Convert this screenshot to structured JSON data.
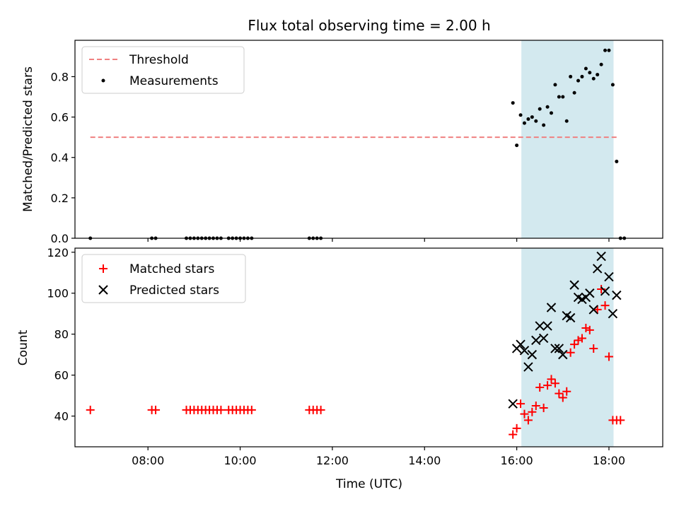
{
  "chart_data": {
    "title": "Flux total observing time = 2.00 h",
    "xlabel": "Time (UTC)",
    "xticks": [
      "08:00",
      "10:00",
      "12:00",
      "14:00",
      "16:00",
      "18:00"
    ],
    "xlim": [
      "06:25",
      "19:10"
    ],
    "highlight_span": {
      "start": "16:06",
      "end": "18:06",
      "color": "#d3e9ef"
    },
    "panels": [
      {
        "type": "scatter",
        "ylabel": "Matched/Predicted stars",
        "ylim": [
          0,
          0.98
        ],
        "yticks": [
          "0.0",
          "0.2",
          "0.4",
          "0.6",
          "0.8"
        ],
        "legend_position": "upper left",
        "threshold": {
          "name": "Threshold",
          "value": 0.5,
          "x_start": "06:45",
          "x_end": "18:10",
          "color": "#f08080"
        },
        "series": [
          {
            "name": "Measurements",
            "color": "#000000",
            "points": [
              [
                "06:45",
                0
              ],
              [
                "08:05",
                0
              ],
              [
                "08:10",
                0
              ],
              [
                "08:50",
                0
              ],
              [
                "08:55",
                0
              ],
              [
                "09:00",
                0
              ],
              [
                "09:05",
                0
              ],
              [
                "09:10",
                0
              ],
              [
                "09:15",
                0
              ],
              [
                "09:20",
                0
              ],
              [
                "09:25",
                0
              ],
              [
                "09:30",
                0
              ],
              [
                "09:35",
                0
              ],
              [
                "09:45",
                0
              ],
              [
                "09:50",
                0
              ],
              [
                "09:55",
                0
              ],
              [
                "10:00",
                0
              ],
              [
                "10:05",
                0
              ],
              [
                "10:10",
                0
              ],
              [
                "10:15",
                0
              ],
              [
                "11:30",
                0
              ],
              [
                "11:35",
                0
              ],
              [
                "11:40",
                0
              ],
              [
                "11:45",
                0
              ],
              [
                "15:55",
                0.67
              ],
              [
                "16:00",
                0.46
              ],
              [
                "16:05",
                0.61
              ],
              [
                "16:10",
                0.57
              ],
              [
                "16:15",
                0.59
              ],
              [
                "16:20",
                0.6
              ],
              [
                "16:25",
                0.58
              ],
              [
                "16:30",
                0.64
              ],
              [
                "16:35",
                0.56
              ],
              [
                "16:40",
                0.65
              ],
              [
                "16:45",
                0.62
              ],
              [
                "16:50",
                0.76
              ],
              [
                "16:55",
                0.7
              ],
              [
                "17:00",
                0.7
              ],
              [
                "17:05",
                0.58
              ],
              [
                "17:10",
                0.8
              ],
              [
                "17:15",
                0.72
              ],
              [
                "17:20",
                0.78
              ],
              [
                "17:25",
                0.8
              ],
              [
                "17:30",
                0.84
              ],
              [
                "17:35",
                0.82
              ],
              [
                "17:40",
                0.79
              ],
              [
                "17:45",
                0.81
              ],
              [
                "17:50",
                0.86
              ],
              [
                "17:55",
                0.93
              ],
              [
                "18:00",
                0.93
              ],
              [
                "18:05",
                0.76
              ],
              [
                "18:10",
                0.38
              ],
              [
                "18:15",
                0
              ],
              [
                "18:20",
                0
              ]
            ]
          }
        ]
      },
      {
        "type": "scatter",
        "ylabel": "Count",
        "ylim": [
          25,
          122
        ],
        "yticks": [
          "40",
          "60",
          "80",
          "100",
          "120"
        ],
        "legend_position": "upper left",
        "series": [
          {
            "name": "Matched stars",
            "marker": "plus",
            "color": "#ff0000",
            "points": [
              [
                "06:45",
                43
              ],
              [
                "08:05",
                43
              ],
              [
                "08:10",
                43
              ],
              [
                "08:50",
                43
              ],
              [
                "08:55",
                43
              ],
              [
                "09:00",
                43
              ],
              [
                "09:05",
                43
              ],
              [
                "09:10",
                43
              ],
              [
                "09:15",
                43
              ],
              [
                "09:20",
                43
              ],
              [
                "09:25",
                43
              ],
              [
                "09:30",
                43
              ],
              [
                "09:35",
                43
              ],
              [
                "09:45",
                43
              ],
              [
                "09:50",
                43
              ],
              [
                "09:55",
                43
              ],
              [
                "10:00",
                43
              ],
              [
                "10:05",
                43
              ],
              [
                "10:10",
                43
              ],
              [
                "10:15",
                43
              ],
              [
                "11:30",
                43
              ],
              [
                "11:35",
                43
              ],
              [
                "11:40",
                43
              ],
              [
                "11:45",
                43
              ],
              [
                "15:55",
                31
              ],
              [
                "16:00",
                34
              ],
              [
                "16:05",
                46
              ],
              [
                "16:10",
                41
              ],
              [
                "16:15",
                38
              ],
              [
                "16:20",
                42
              ],
              [
                "16:25",
                45
              ],
              [
                "16:30",
                54
              ],
              [
                "16:35",
                44
              ],
              [
                "16:40",
                55
              ],
              [
                "16:45",
                58
              ],
              [
                "16:50",
                56
              ],
              [
                "16:55",
                51
              ],
              [
                "17:00",
                49
              ],
              [
                "17:05",
                52
              ],
              [
                "17:10",
                71
              ],
              [
                "17:15",
                75
              ],
              [
                "17:20",
                77
              ],
              [
                "17:25",
                78
              ],
              [
                "17:30",
                83
              ],
              [
                "17:35",
                82
              ],
              [
                "17:40",
                73
              ],
              [
                "17:45",
                92
              ],
              [
                "17:50",
                102
              ],
              [
                "17:55",
                94
              ],
              [
                "18:00",
                69
              ],
              [
                "18:05",
                38
              ],
              [
                "18:10",
                38
              ],
              [
                "18:15",
                38
              ]
            ]
          },
          {
            "name": "Predicted stars",
            "marker": "x",
            "color": "#000000",
            "points": [
              [
                "15:55",
                46
              ],
              [
                "16:00",
                73
              ],
              [
                "16:05",
                75
              ],
              [
                "16:10",
                72
              ],
              [
                "16:15",
                64
              ],
              [
                "16:20",
                70
              ],
              [
                "16:25",
                77
              ],
              [
                "16:30",
                84
              ],
              [
                "16:35",
                78
              ],
              [
                "16:40",
                84
              ],
              [
                "16:45",
                93
              ],
              [
                "16:50",
                73
              ],
              [
                "16:55",
                73
              ],
              [
                "17:00",
                70
              ],
              [
                "17:05",
                89
              ],
              [
                "17:10",
                88
              ],
              [
                "17:15",
                104
              ],
              [
                "17:20",
                98
              ],
              [
                "17:25",
                97
              ],
              [
                "17:30",
                98
              ],
              [
                "17:35",
                100
              ],
              [
                "17:40",
                92
              ],
              [
                "17:45",
                112
              ],
              [
                "17:50",
                118
              ],
              [
                "17:55",
                101
              ],
              [
                "18:00",
                108
              ],
              [
                "18:05",
                90
              ],
              [
                "18:10",
                99
              ]
            ]
          }
        ]
      }
    ]
  }
}
